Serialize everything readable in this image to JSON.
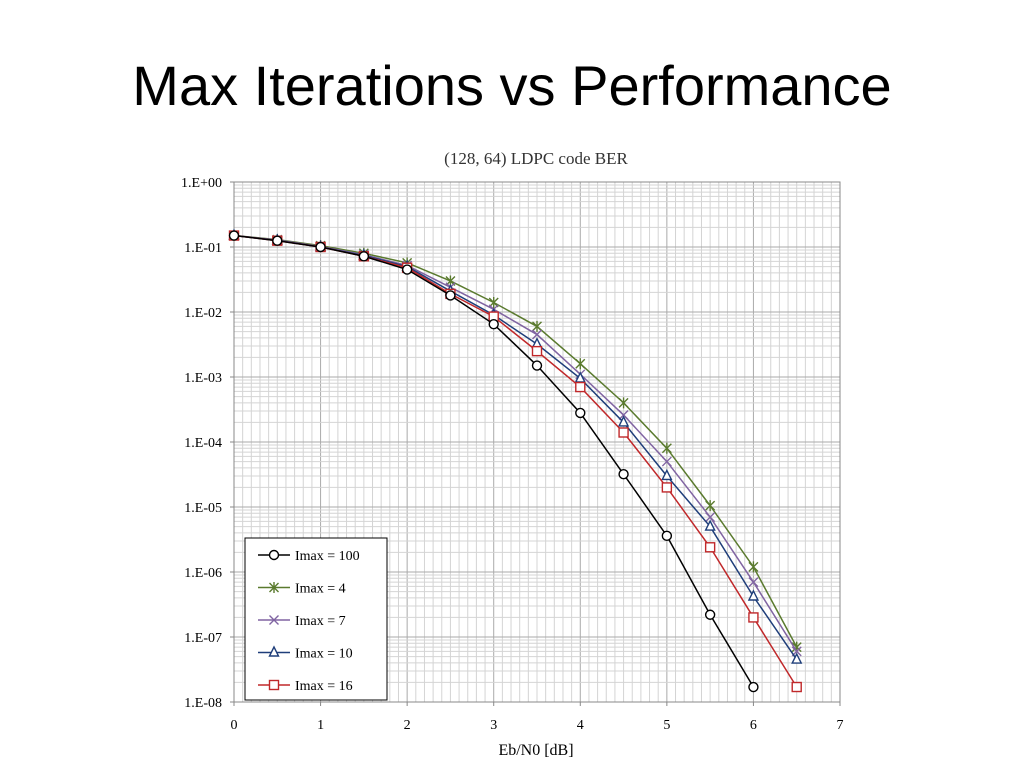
{
  "slide": {
    "title": "Max Iterations vs Performance"
  },
  "chart_data": {
    "type": "line",
    "title": "(128, 64) LDPC code BER",
    "xlabel": "Eb/N0 [dB]",
    "ylabel": "",
    "xlim": [
      0,
      7
    ],
    "xticks": [
      "0",
      "1",
      "2",
      "3",
      "4",
      "5",
      "6",
      "7"
    ],
    "ylim": [
      1e-08,
      1
    ],
    "yscale": "log",
    "yticks": [
      "1.E+00",
      "1.E-01",
      "1.E-02",
      "1.E-03",
      "1.E-04",
      "1.E-05",
      "1.E-06",
      "1.E-07",
      "1.E-08"
    ],
    "grid": true,
    "legend_position": "bottom-left",
    "series": [
      {
        "name": "Imax = 100",
        "color": "#000000",
        "marker": "circle",
        "x": [
          0,
          0.5,
          1,
          1.5,
          2,
          2.5,
          3,
          3.5,
          4,
          4.5,
          5,
          5.5,
          6
        ],
        "y": [
          0.15,
          0.125,
          0.1,
          0.072,
          0.045,
          0.018,
          0.0065,
          0.0015,
          0.00028,
          3.2e-05,
          3.6e-06,
          2.2e-07,
          1.7e-08
        ]
      },
      {
        "name": "Imax = 4",
        "color": "#5a7a2e",
        "marker": "star",
        "x": [
          0,
          0.5,
          1,
          1.5,
          2,
          2.5,
          3,
          3.5,
          4,
          4.5,
          5,
          5.5,
          6,
          6.5
        ],
        "y": [
          0.15,
          0.13,
          0.105,
          0.08,
          0.057,
          0.03,
          0.014,
          0.006,
          0.0016,
          0.0004,
          8e-05,
          1.05e-05,
          1.2e-06,
          7e-08
        ]
      },
      {
        "name": "Imax = 7",
        "color": "#8064a2",
        "marker": "x",
        "x": [
          0,
          0.5,
          1,
          1.5,
          2,
          2.5,
          3,
          3.5,
          4,
          4.5,
          5,
          5.5,
          6,
          6.5
        ],
        "y": [
          0.15,
          0.128,
          0.102,
          0.076,
          0.052,
          0.024,
          0.011,
          0.0045,
          0.0011,
          0.00026,
          5e-05,
          7e-06,
          7e-07,
          6e-08
        ]
      },
      {
        "name": "Imax = 10",
        "color": "#1f3e7a",
        "marker": "triangle",
        "x": [
          0,
          0.5,
          1,
          1.5,
          2,
          2.5,
          3,
          3.5,
          4,
          4.5,
          5,
          5.5,
          6,
          6.5
        ],
        "y": [
          0.15,
          0.126,
          0.1,
          0.074,
          0.05,
          0.021,
          0.009,
          0.0032,
          0.00095,
          0.0002,
          3e-05,
          5e-06,
          4.2e-07,
          4.5e-08
        ]
      },
      {
        "name": "Imax = 16",
        "color": "#c0282a",
        "marker": "square",
        "x": [
          0,
          0.5,
          1,
          1.5,
          2,
          2.5,
          3,
          3.5,
          4,
          4.5,
          5,
          5.5,
          6,
          6.5
        ],
        "y": [
          0.15,
          0.125,
          0.1,
          0.072,
          0.048,
          0.019,
          0.0085,
          0.0025,
          0.0007,
          0.00014,
          2e-05,
          2.4e-06,
          2e-07,
          1.7e-08
        ]
      }
    ]
  }
}
